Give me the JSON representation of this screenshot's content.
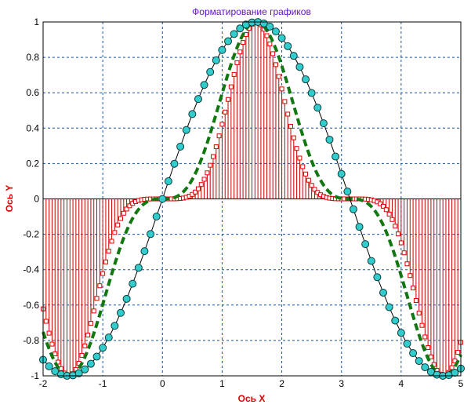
{
  "chart_data": {
    "type": "line",
    "title": "Форматирование графиков",
    "xlabel": "Ось X",
    "ylabel": "Ось Y",
    "xlim": [
      -2,
      5
    ],
    "ylim": [
      -1,
      1
    ],
    "x_ticks": [
      "-2",
      "-1",
      "0",
      "1",
      "2",
      "3",
      "4",
      "5"
    ],
    "y_ticks": [
      "-1",
      "-0.8",
      "-0.6",
      "-0.4",
      "-0.2",
      "0",
      "0.2",
      "0.4",
      "0.6",
      "0.8",
      "1"
    ],
    "grid": true,
    "series": [
      {
        "style": "solid line with circle markers",
        "marker_color": "#33CCCC",
        "line_color": "#000000",
        "x_start": -2,
        "x_end": 5,
        "count": 71,
        "function": "sin(x)"
      },
      {
        "style": "stem with square markers",
        "marker_color": "#DD0000",
        "stem_color": "#CC0000",
        "x_start": -2,
        "x_end": 5,
        "count": 141,
        "function": "sin(x)^5"
      },
      {
        "style": "dashed line",
        "line_color": "#117711",
        "x_start": -2,
        "x_end": 5,
        "count": 281,
        "function": "sin(x)^3"
      }
    ]
  },
  "colors": {
    "title": "#6611CC",
    "axis_label": "#DD0000",
    "grid": "#1155AA",
    "frame": "#000000"
  }
}
